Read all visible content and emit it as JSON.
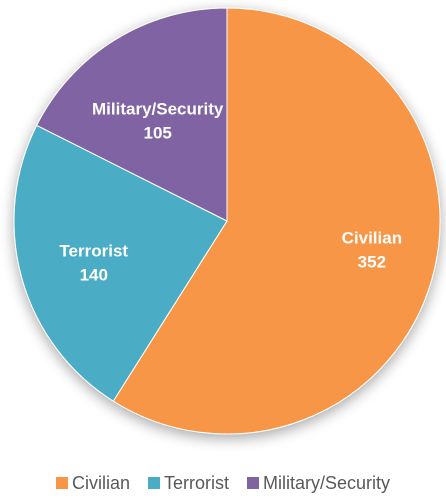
{
  "chart_data": {
    "type": "pie",
    "title": "",
    "slices": [
      {
        "label": "Civilian",
        "value": 352,
        "color": "#F79646"
      },
      {
        "label": "Terrorist",
        "value": 140,
        "color": "#4BACC6"
      },
      {
        "label": "Military/Security",
        "value": 105,
        "color": "#8064A2"
      }
    ],
    "start": "12 o'clock",
    "direction": "clockwise",
    "data_labels": "category name and value, inside slices",
    "legend_position": "bottom"
  },
  "legend": {
    "items": [
      {
        "label": "Civilian",
        "color": "#F79646"
      },
      {
        "label": "Terrorist",
        "color": "#4BACC6"
      },
      {
        "label": "Military/Security",
        "color": "#8064A2"
      }
    ]
  }
}
